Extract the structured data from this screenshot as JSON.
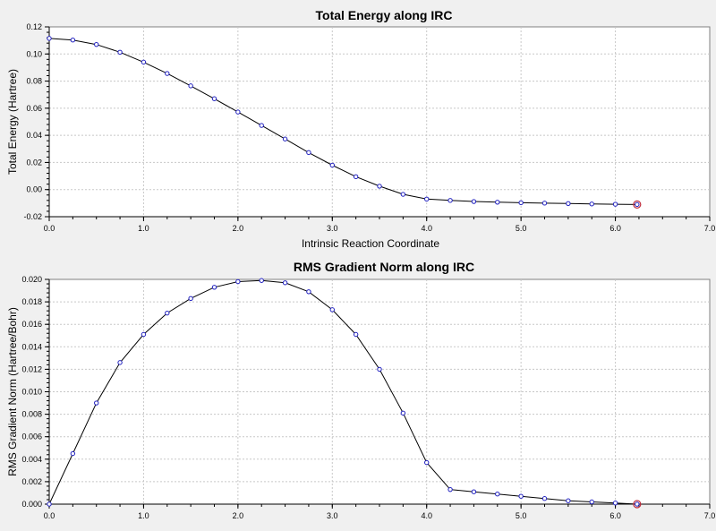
{
  "chart_data": [
    {
      "type": "line",
      "title": "Total Energy along IRC",
      "xlabel": "Intrinsic Reaction Coordinate",
      "ylabel": "Total Energy (Hartree)",
      "xlim": [
        0,
        7
      ],
      "ylim": [
        -0.02,
        0.12
      ],
      "xticks": [
        "0.0",
        "1.0",
        "2.0",
        "3.0",
        "4.0",
        "5.0",
        "6.0",
        "7.0"
      ],
      "xtick_values": [
        0,
        1,
        2,
        3,
        4,
        5,
        6,
        7
      ],
      "yticks": [
        "-0.02",
        "0.00",
        "0.02",
        "0.04",
        "0.06",
        "0.08",
        "0.10",
        "0.12"
      ],
      "ytick_values": [
        -0.02,
        0.0,
        0.02,
        0.04,
        0.06,
        0.08,
        0.1,
        0.12
      ],
      "grid": true,
      "line_color": "#000000",
      "marker_color": "#2020c0",
      "end_marker_color": "#c03040",
      "x": [
        0.0,
        0.25,
        0.5,
        0.75,
        1.0,
        1.25,
        1.5,
        1.75,
        2.0,
        2.25,
        2.5,
        2.75,
        3.0,
        3.25,
        3.5,
        3.75,
        4.0,
        4.25,
        4.5,
        4.75,
        5.0,
        5.25,
        5.5,
        5.75,
        6.0,
        6.23
      ],
      "values": [
        0.1115,
        0.1103,
        0.107,
        0.1013,
        0.094,
        0.0856,
        0.0765,
        0.067,
        0.0572,
        0.0473,
        0.0373,
        0.0273,
        0.018,
        0.0095,
        0.0025,
        -0.0035,
        -0.007,
        -0.008,
        -0.0088,
        -0.0093,
        -0.0097,
        -0.01,
        -0.0103,
        -0.0106,
        -0.0108,
        -0.011
      ]
    },
    {
      "type": "line",
      "title": "RMS Gradient Norm along IRC",
      "xlabel": "",
      "ylabel": "RMS Gradient Norm (Hartree/Bohr)",
      "xlim": [
        0,
        7
      ],
      "ylim": [
        0,
        0.02
      ],
      "xticks": [
        "0.0",
        "1.0",
        "2.0",
        "3.0",
        "4.0",
        "5.0",
        "6.0",
        "7.0"
      ],
      "xtick_values": [
        0,
        1,
        2,
        3,
        4,
        5,
        6,
        7
      ],
      "yticks": [
        "0.000",
        "0.002",
        "0.004",
        "0.006",
        "0.008",
        "0.010",
        "0.012",
        "0.014",
        "0.016",
        "0.018",
        "0.020"
      ],
      "ytick_values": [
        0,
        0.002,
        0.004,
        0.006,
        0.008,
        0.01,
        0.012,
        0.014,
        0.016,
        0.018,
        0.02
      ],
      "grid": true,
      "line_color": "#000000",
      "marker_color": "#2020c0",
      "end_marker_color": "#c03040",
      "x": [
        0.0,
        0.25,
        0.5,
        0.75,
        1.0,
        1.25,
        1.5,
        1.75,
        2.0,
        2.25,
        2.5,
        2.75,
        3.0,
        3.25,
        3.5,
        3.75,
        4.0,
        4.25,
        4.5,
        4.75,
        5.0,
        5.25,
        5.5,
        5.75,
        6.0,
        6.23
      ],
      "values": [
        0.0,
        0.0045,
        0.009,
        0.0126,
        0.0151,
        0.017,
        0.0183,
        0.0193,
        0.0198,
        0.0199,
        0.0197,
        0.0189,
        0.0173,
        0.0151,
        0.012,
        0.0081,
        0.0037,
        0.0013,
        0.0011,
        0.0009,
        0.0007,
        0.0005,
        0.0003,
        0.0002,
        0.0001,
        0.0
      ]
    }
  ]
}
